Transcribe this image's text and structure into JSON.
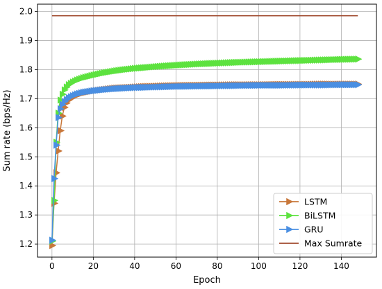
{
  "chart_data": {
    "type": "line",
    "xlabel": "Epoch",
    "ylabel": "Sum rate (bps/Hz)",
    "xlim": [
      -7,
      157
    ],
    "ylim": [
      1.155,
      2.025
    ],
    "xticks": [
      0,
      20,
      40,
      60,
      80,
      100,
      120,
      140
    ],
    "yticks": [
      1.2,
      1.3,
      1.4,
      1.5,
      1.6,
      1.7,
      1.8,
      1.9,
      2.0
    ],
    "xtick_labels": [
      "0",
      "20",
      "40",
      "60",
      "80",
      "100",
      "120",
      "140"
    ],
    "ytick_labels": [
      "1.2",
      "1.3",
      "1.4",
      "1.5",
      "1.6",
      "1.7",
      "1.8",
      "1.9",
      "2.0"
    ],
    "grid": true,
    "legend_position": "lower-right",
    "series": [
      {
        "name": "LSTM",
        "color": "#c8773a",
        "marker": "triangle-right",
        "x": [
          0,
          1,
          2,
          3,
          4,
          5,
          6,
          7,
          8,
          10,
          12,
          15,
          20,
          25,
          30,
          35,
          40,
          45,
          50,
          60,
          70,
          80,
          90,
          100,
          110,
          120,
          130,
          140,
          148
        ],
        "y": [
          1.195,
          1.34,
          1.445,
          1.52,
          1.59,
          1.64,
          1.67,
          1.685,
          1.695,
          1.705,
          1.712,
          1.72,
          1.727,
          1.732,
          1.736,
          1.738,
          1.74,
          1.742,
          1.743,
          1.745,
          1.746,
          1.747,
          1.748,
          1.748,
          1.749,
          1.749,
          1.75,
          1.75,
          1.75
        ]
      },
      {
        "name": "BiLSTM",
        "color": "#5de23f",
        "marker": "triangle-right",
        "x": [
          0,
          1,
          2,
          3,
          4,
          5,
          6,
          7,
          8,
          10,
          12,
          15,
          20,
          25,
          30,
          35,
          40,
          45,
          50,
          60,
          70,
          80,
          90,
          100,
          110,
          120,
          130,
          140,
          148
        ],
        "y": [
          1.21,
          1.35,
          1.55,
          1.65,
          1.695,
          1.715,
          1.73,
          1.74,
          1.748,
          1.757,
          1.764,
          1.772,
          1.781,
          1.789,
          1.795,
          1.8,
          1.804,
          1.807,
          1.81,
          1.815,
          1.819,
          1.822,
          1.825,
          1.827,
          1.829,
          1.831,
          1.833,
          1.835,
          1.836
        ]
      },
      {
        "name": "GRU",
        "color": "#4a8fe2",
        "marker": "triangle-right",
        "x": [
          0,
          1,
          2,
          3,
          4,
          5,
          6,
          7,
          8,
          10,
          12,
          15,
          20,
          25,
          30,
          35,
          40,
          45,
          50,
          60,
          70,
          80,
          90,
          100,
          110,
          120,
          130,
          140,
          148
        ],
        "y": [
          1.213,
          1.425,
          1.54,
          1.635,
          1.665,
          1.68,
          1.69,
          1.697,
          1.703,
          1.71,
          1.716,
          1.722,
          1.727,
          1.731,
          1.734,
          1.736,
          1.738,
          1.739,
          1.74,
          1.742,
          1.743,
          1.744,
          1.745,
          1.746,
          1.746,
          1.747,
          1.747,
          1.748,
          1.748
        ]
      },
      {
        "name": "Max Sumrate",
        "color": "#a04a2e",
        "marker": "none",
        "x": [
          0,
          148
        ],
        "y": [
          1.985,
          1.985
        ]
      }
    ]
  }
}
